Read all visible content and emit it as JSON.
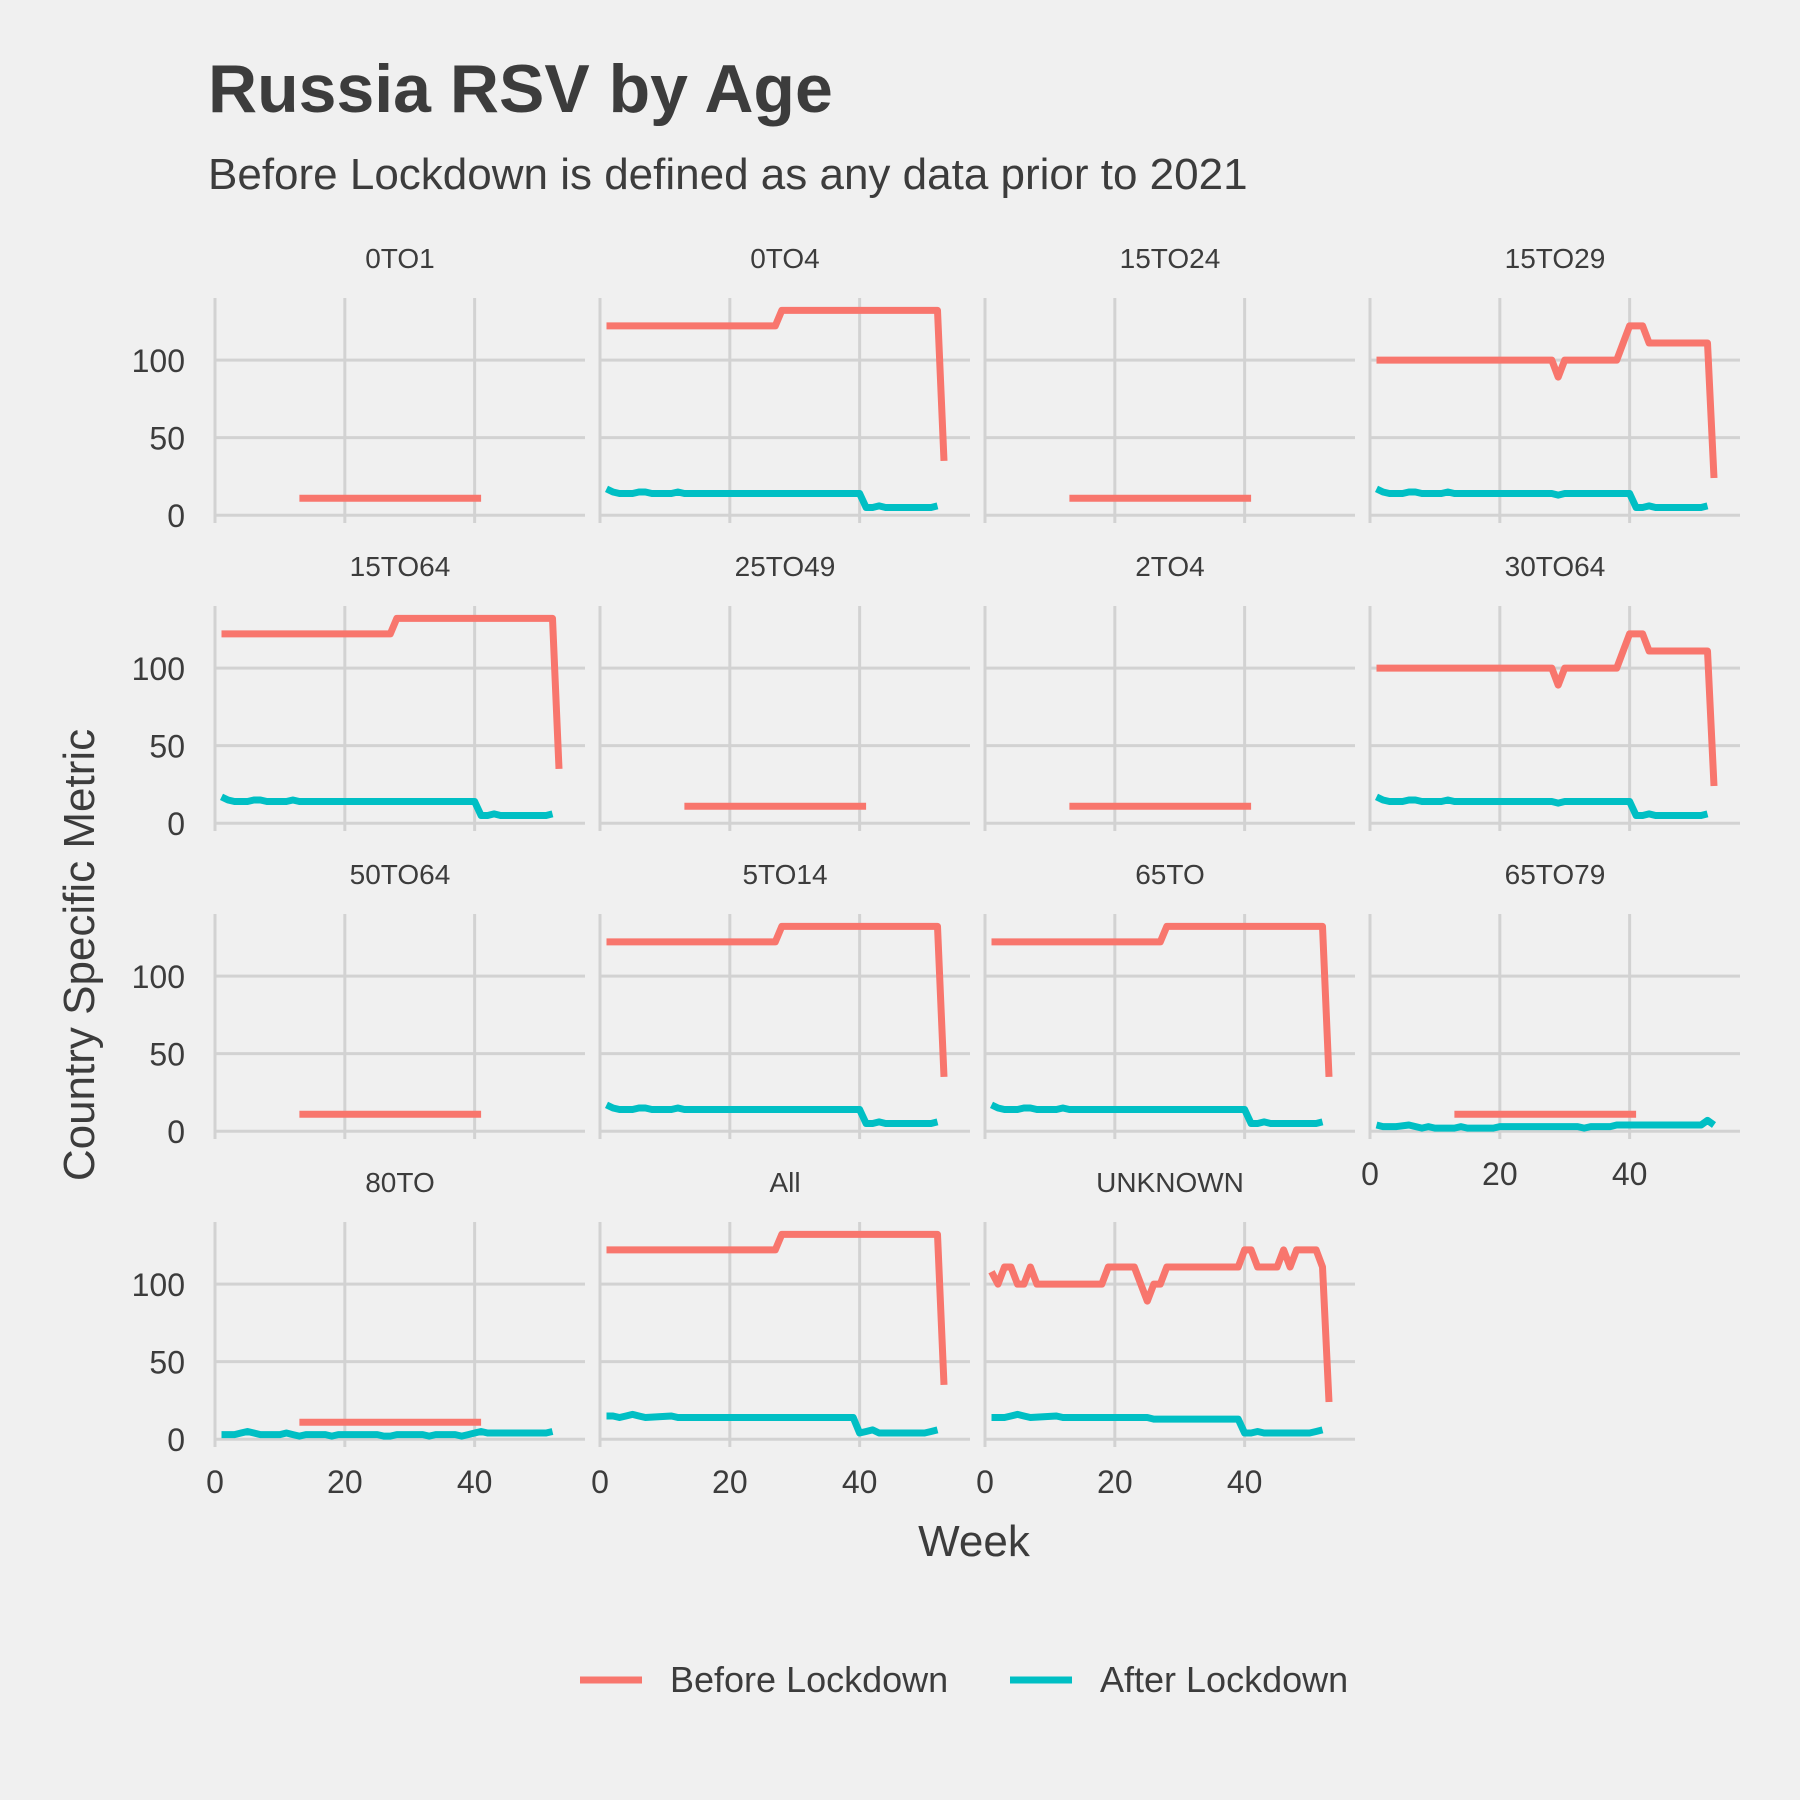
{
  "title": "Russia RSV by Age",
  "subtitle": "Before Lockdown is defined as any data prior to 2021",
  "chart_data": {
    "type": "line",
    "xlabel": "Week",
    "ylabel": "Country Specific Metric",
    "xlim": [
      0,
      57
    ],
    "ylim": [
      -5,
      140
    ],
    "x_ticks": [
      0,
      20,
      40
    ],
    "y_ticks": [
      0,
      50,
      100
    ],
    "legend_position": "bottom",
    "legend": [
      {
        "name": "Before Lockdown",
        "color": "#F8766D"
      },
      {
        "name": "After Lockdown",
        "color": "#00BFC4"
      }
    ],
    "panels": [
      {
        "label": "0TO1",
        "before": [
          [
            13,
            11
          ],
          [
            41,
            11
          ]
        ],
        "after": []
      },
      {
        "label": "0TO4",
        "before": [
          [
            1,
            122
          ],
          [
            27,
            122
          ],
          [
            28,
            132
          ],
          [
            52,
            132
          ],
          [
            53,
            35
          ]
        ],
        "after": [
          [
            1,
            17
          ],
          [
            2,
            15
          ],
          [
            3,
            14
          ],
          [
            5,
            14
          ],
          [
            6,
            15
          ],
          [
            7,
            15
          ],
          [
            8,
            14
          ],
          [
            11,
            14
          ],
          [
            12,
            15
          ],
          [
            13,
            14
          ],
          [
            40,
            14
          ],
          [
            41,
            5
          ],
          [
            42,
            5
          ],
          [
            43,
            6
          ],
          [
            44,
            5
          ],
          [
            51,
            5
          ],
          [
            52,
            6
          ]
        ]
      },
      {
        "label": "15TO24",
        "before": [
          [
            13,
            11
          ],
          [
            41,
            11
          ]
        ],
        "after": []
      },
      {
        "label": "15TO29",
        "before": [
          [
            1,
            100
          ],
          [
            28,
            100
          ],
          [
            29,
            89
          ],
          [
            30,
            100
          ],
          [
            38,
            100
          ],
          [
            40,
            122
          ],
          [
            42,
            122
          ],
          [
            43,
            111
          ],
          [
            51,
            111
          ],
          [
            52,
            111
          ],
          [
            53,
            24
          ]
        ],
        "after": [
          [
            1,
            17
          ],
          [
            2,
            15
          ],
          [
            3,
            14
          ],
          [
            5,
            14
          ],
          [
            6,
            15
          ],
          [
            7,
            15
          ],
          [
            8,
            14
          ],
          [
            11,
            14
          ],
          [
            12,
            15
          ],
          [
            13,
            14
          ],
          [
            28,
            14
          ],
          [
            29,
            13
          ],
          [
            30,
            14
          ],
          [
            40,
            14
          ],
          [
            41,
            5
          ],
          [
            42,
            5
          ],
          [
            43,
            6
          ],
          [
            44,
            5
          ],
          [
            51,
            5
          ],
          [
            52,
            6
          ]
        ]
      },
      {
        "label": "15TO64",
        "before": [
          [
            1,
            122
          ],
          [
            27,
            122
          ],
          [
            28,
            132
          ],
          [
            52,
            132
          ],
          [
            53,
            35
          ]
        ],
        "after": [
          [
            1,
            17
          ],
          [
            2,
            15
          ],
          [
            3,
            14
          ],
          [
            5,
            14
          ],
          [
            6,
            15
          ],
          [
            7,
            15
          ],
          [
            8,
            14
          ],
          [
            11,
            14
          ],
          [
            12,
            15
          ],
          [
            13,
            14
          ],
          [
            40,
            14
          ],
          [
            41,
            5
          ],
          [
            42,
            5
          ],
          [
            43,
            6
          ],
          [
            44,
            5
          ],
          [
            51,
            5
          ],
          [
            52,
            6
          ]
        ]
      },
      {
        "label": "25TO49",
        "before": [
          [
            13,
            11
          ],
          [
            41,
            11
          ]
        ],
        "after": []
      },
      {
        "label": "2TO4",
        "before": [
          [
            13,
            11
          ],
          [
            41,
            11
          ]
        ],
        "after": []
      },
      {
        "label": "30TO64",
        "before": [
          [
            1,
            100
          ],
          [
            28,
            100
          ],
          [
            29,
            89
          ],
          [
            30,
            100
          ],
          [
            38,
            100
          ],
          [
            40,
            122
          ],
          [
            42,
            122
          ],
          [
            43,
            111
          ],
          [
            51,
            111
          ],
          [
            52,
            111
          ],
          [
            53,
            24
          ]
        ],
        "after": [
          [
            1,
            17
          ],
          [
            2,
            15
          ],
          [
            3,
            14
          ],
          [
            5,
            14
          ],
          [
            6,
            15
          ],
          [
            7,
            15
          ],
          [
            8,
            14
          ],
          [
            11,
            14
          ],
          [
            12,
            15
          ],
          [
            13,
            14
          ],
          [
            28,
            14
          ],
          [
            29,
            13
          ],
          [
            30,
            14
          ],
          [
            40,
            14
          ],
          [
            41,
            5
          ],
          [
            42,
            5
          ],
          [
            43,
            6
          ],
          [
            44,
            5
          ],
          [
            51,
            5
          ],
          [
            52,
            6
          ]
        ]
      },
      {
        "label": "50TO64",
        "before": [
          [
            13,
            11
          ],
          [
            41,
            11
          ]
        ],
        "after": []
      },
      {
        "label": "5TO14",
        "before": [
          [
            1,
            122
          ],
          [
            27,
            122
          ],
          [
            28,
            132
          ],
          [
            52,
            132
          ],
          [
            53,
            35
          ]
        ],
        "after": [
          [
            1,
            17
          ],
          [
            2,
            15
          ],
          [
            3,
            14
          ],
          [
            5,
            14
          ],
          [
            6,
            15
          ],
          [
            7,
            15
          ],
          [
            8,
            14
          ],
          [
            11,
            14
          ],
          [
            12,
            15
          ],
          [
            13,
            14
          ],
          [
            40,
            14
          ],
          [
            41,
            5
          ],
          [
            42,
            5
          ],
          [
            43,
            6
          ],
          [
            44,
            5
          ],
          [
            51,
            5
          ],
          [
            52,
            6
          ]
        ]
      },
      {
        "label": "65TO",
        "before": [
          [
            1,
            122
          ],
          [
            27,
            122
          ],
          [
            28,
            132
          ],
          [
            52,
            132
          ],
          [
            53,
            35
          ]
        ],
        "after": [
          [
            1,
            17
          ],
          [
            2,
            15
          ],
          [
            3,
            14
          ],
          [
            5,
            14
          ],
          [
            6,
            15
          ],
          [
            7,
            15
          ],
          [
            8,
            14
          ],
          [
            11,
            14
          ],
          [
            12,
            15
          ],
          [
            13,
            14
          ],
          [
            40,
            14
          ],
          [
            41,
            5
          ],
          [
            42,
            5
          ],
          [
            43,
            6
          ],
          [
            44,
            5
          ],
          [
            51,
            5
          ],
          [
            52,
            6
          ]
        ]
      },
      {
        "label": "65TO79",
        "before": [
          [
            13,
            11
          ],
          [
            41,
            11
          ]
        ],
        "after": [
          [
            1,
            4
          ],
          [
            2,
            3
          ],
          [
            4,
            3
          ],
          [
            6,
            4
          ],
          [
            8,
            2
          ],
          [
            9,
            3
          ],
          [
            10,
            2
          ],
          [
            13,
            2
          ],
          [
            14,
            3
          ],
          [
            15,
            2
          ],
          [
            19,
            2
          ],
          [
            20,
            3
          ],
          [
            32,
            3
          ],
          [
            33,
            2
          ],
          [
            34,
            3
          ],
          [
            37,
            3
          ],
          [
            38,
            4
          ],
          [
            51,
            4
          ],
          [
            52,
            7
          ],
          [
            53,
            4
          ]
        ]
      },
      {
        "label": "80TO",
        "before": [
          [
            13,
            11
          ],
          [
            41,
            11
          ]
        ],
        "after": [
          [
            1,
            3
          ],
          [
            3,
            3
          ],
          [
            4,
            4
          ],
          [
            5,
            5
          ],
          [
            6,
            4
          ],
          [
            7,
            3
          ],
          [
            10,
            3
          ],
          [
            11,
            4
          ],
          [
            12,
            3
          ],
          [
            13,
            2
          ],
          [
            14,
            3
          ],
          [
            17,
            3
          ],
          [
            18,
            2
          ],
          [
            19,
            3
          ],
          [
            25,
            3
          ],
          [
            26,
            2
          ],
          [
            27,
            2
          ],
          [
            28,
            3
          ],
          [
            32,
            3
          ],
          [
            33,
            2
          ],
          [
            34,
            3
          ],
          [
            37,
            3
          ],
          [
            38,
            2
          ],
          [
            39,
            3
          ],
          [
            40,
            4
          ],
          [
            41,
            5
          ],
          [
            42,
            4
          ],
          [
            51,
            4
          ],
          [
            52,
            5
          ]
        ]
      },
      {
        "label": "All",
        "before": [
          [
            1,
            122
          ],
          [
            27,
            122
          ],
          [
            28,
            132
          ],
          [
            52,
            132
          ],
          [
            53,
            35
          ]
        ],
        "after": [
          [
            1,
            15
          ],
          [
            2,
            15
          ],
          [
            3,
            14
          ],
          [
            4,
            15
          ],
          [
            5,
            16
          ],
          [
            6,
            15
          ],
          [
            7,
            14
          ],
          [
            11,
            15
          ],
          [
            12,
            14
          ],
          [
            39,
            14
          ],
          [
            40,
            4
          ],
          [
            41,
            5
          ],
          [
            42,
            6
          ],
          [
            43,
            4
          ],
          [
            50,
            4
          ],
          [
            51,
            5
          ],
          [
            52,
            6
          ]
        ]
      },
      {
        "label": "UNKNOWN",
        "before": [
          [
            1,
            108
          ],
          [
            2,
            100
          ],
          [
            3,
            111
          ],
          [
            4,
            111
          ],
          [
            5,
            100
          ],
          [
            6,
            100
          ],
          [
            7,
            111
          ],
          [
            8,
            100
          ],
          [
            18,
            100
          ],
          [
            19,
            111
          ],
          [
            23,
            111
          ],
          [
            24,
            100
          ],
          [
            25,
            89
          ],
          [
            26,
            100
          ],
          [
            27,
            100
          ],
          [
            28,
            111
          ],
          [
            39,
            111
          ],
          [
            40,
            122
          ],
          [
            41,
            122
          ],
          [
            42,
            111
          ],
          [
            45,
            111
          ],
          [
            46,
            122
          ],
          [
            47,
            111
          ],
          [
            48,
            122
          ],
          [
            51,
            122
          ],
          [
            52,
            111
          ],
          [
            53,
            24
          ]
        ],
        "after": [
          [
            1,
            14
          ],
          [
            3,
            14
          ],
          [
            4,
            15
          ],
          [
            5,
            16
          ],
          [
            6,
            15
          ],
          [
            7,
            14
          ],
          [
            11,
            15
          ],
          [
            12,
            14
          ],
          [
            25,
            14
          ],
          [
            26,
            13
          ],
          [
            38,
            13
          ],
          [
            39,
            13
          ],
          [
            40,
            4
          ],
          [
            41,
            4
          ],
          [
            42,
            5
          ],
          [
            43,
            4
          ],
          [
            50,
            4
          ],
          [
            51,
            5
          ],
          [
            52,
            6
          ]
        ]
      }
    ]
  }
}
